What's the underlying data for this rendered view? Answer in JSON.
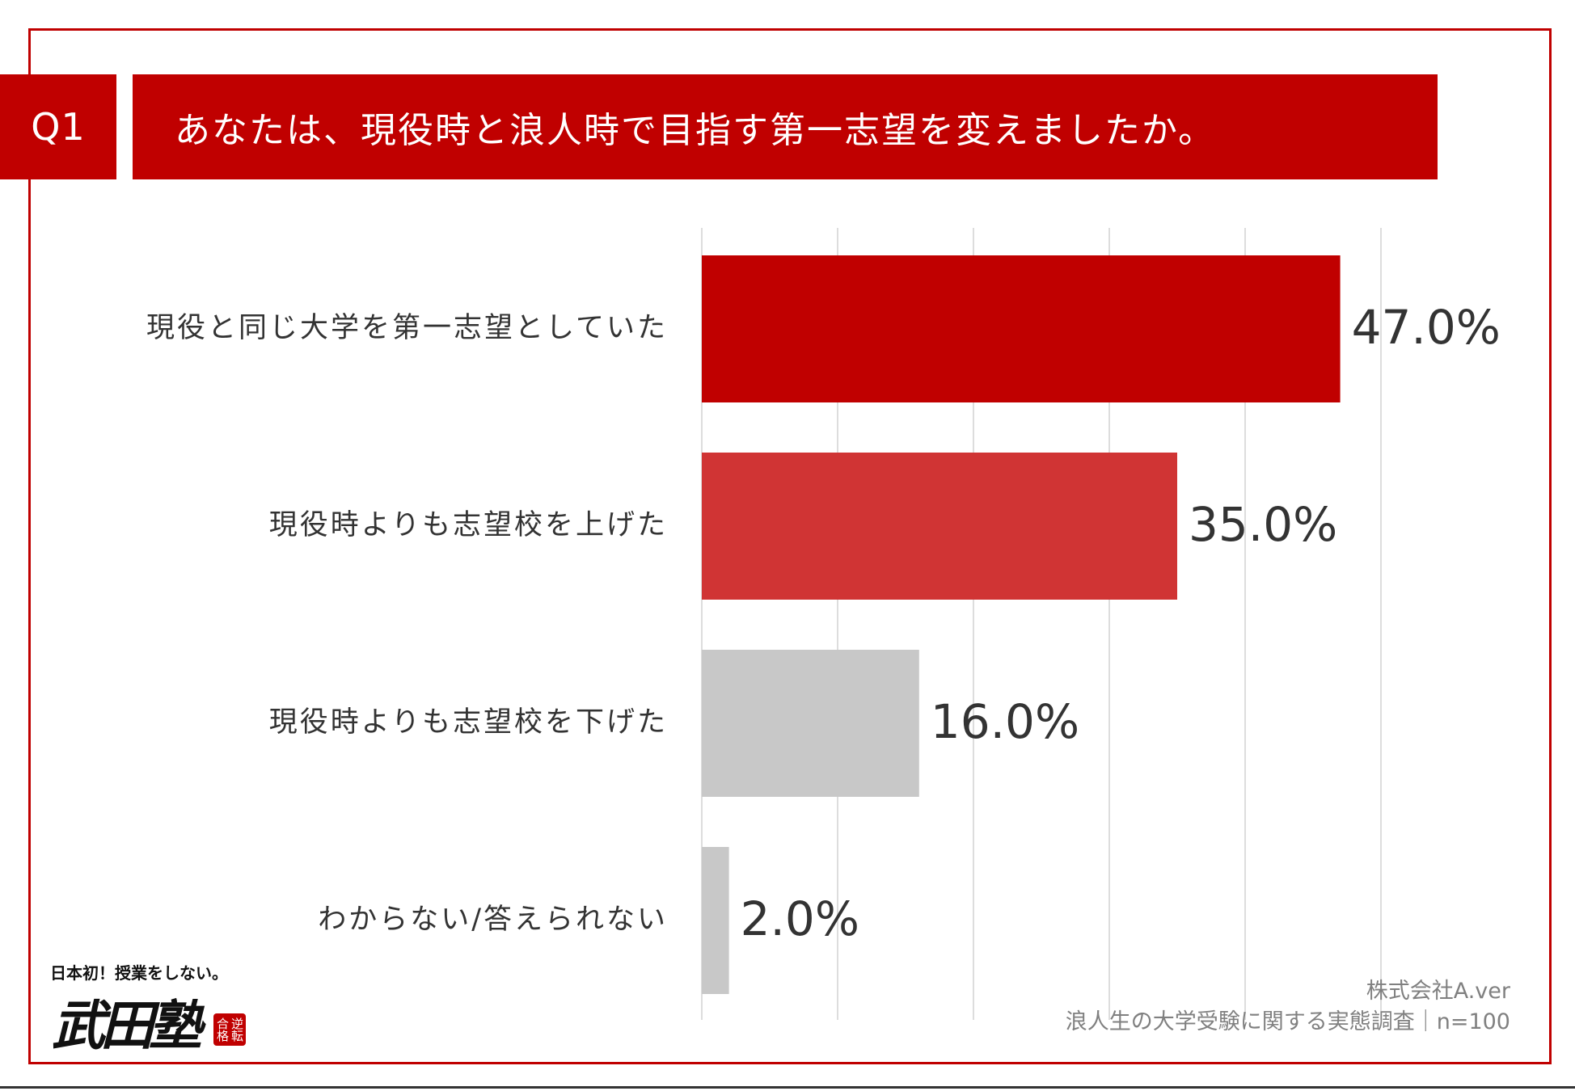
{
  "header": {
    "question_no": "Q1",
    "question": "あなたは、現役時と浪人時で目指す第一志望を変えましたか。"
  },
  "chart_data": {
    "type": "bar",
    "orientation": "horizontal",
    "categories": [
      "現役と同じ大学を第一志望としていた",
      "現役時よりも志望校を上げた",
      "現役時よりも志望校を下げた",
      "わからない/答えられない"
    ],
    "values": [
      47.0,
      35.0,
      16.0,
      2.0
    ],
    "value_labels": [
      "47.0%",
      "35.0%",
      "16.0%",
      "2.0%"
    ],
    "colors": [
      "#c00000",
      "#d03434",
      "#c8c8c8",
      "#c8c8c8"
    ],
    "xlim": [
      0,
      50
    ],
    "gridlines": [
      0,
      10,
      20,
      30,
      40,
      50
    ],
    "grid": true,
    "title": "",
    "xlabel": "",
    "ylabel": ""
  },
  "footer": {
    "company": "株式会社A.ver",
    "survey": "浪人生の大学受験に関する実態調査｜n=100"
  },
  "logo": {
    "tagline": "日本初！授業をしない。",
    "name": "武田塾",
    "seal": "逆転合格"
  }
}
